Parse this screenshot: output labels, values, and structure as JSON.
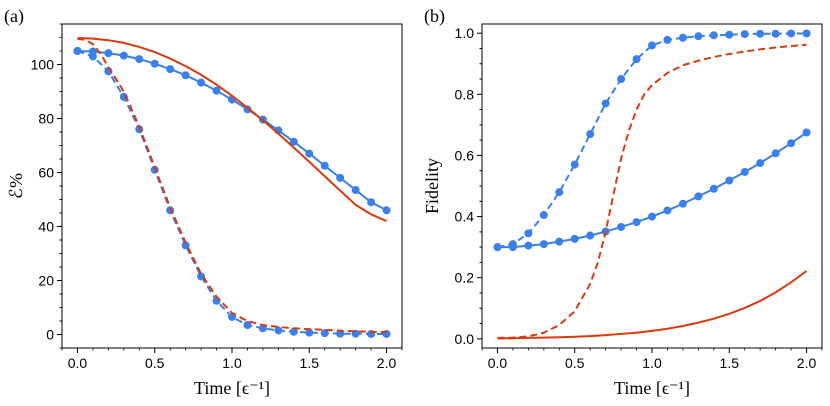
{
  "chart_data": [
    {
      "type": "line",
      "panel_label": "(a)",
      "xlabel": "Time [ϵ⁻¹]",
      "ylabel": "ℰ%",
      "xlim": [
        -0.1,
        2.1
      ],
      "ylim": [
        -5,
        115
      ],
      "xticks": [
        0.0,
        0.5,
        1.0,
        1.5,
        2.0
      ],
      "xtick_labels": [
        "0.0",
        "0.5",
        "1.0",
        "1.5",
        "2.0"
      ],
      "yticks": [
        0,
        20,
        40,
        60,
        80,
        100
      ],
      "ytick_labels": [
        "0",
        "20",
        "40",
        "60",
        "80",
        "100"
      ],
      "series": [
        {
          "name": "blue-solid-dots",
          "color": "#3a7fea",
          "style": "solid",
          "markers": true,
          "x": [
            0,
            0.1,
            0.2,
            0.3,
            0.4,
            0.5,
            0.6,
            0.7,
            0.8,
            0.9,
            1.0,
            1.1,
            1.2,
            1.3,
            1.4,
            1.5,
            1.6,
            1.7,
            1.8,
            1.9,
            2.0
          ],
          "y": [
            105,
            104.8,
            104.2,
            103.3,
            102,
            100.3,
            98.3,
            96,
            93.3,
            90.3,
            87,
            83.4,
            79.6,
            75.6,
            71.4,
            67,
            62.5,
            58,
            53.5,
            49,
            46
          ]
        },
        {
          "name": "blue-dashed-dots",
          "color": "#3a7fea",
          "style": "dashed",
          "markers": true,
          "x": [
            0,
            0.1,
            0.2,
            0.3,
            0.4,
            0.5,
            0.6,
            0.7,
            0.8,
            0.9,
            1.0,
            1.1,
            1.2,
            1.3,
            1.4,
            1.5,
            1.6,
            1.7,
            1.8,
            1.9,
            2.0
          ],
          "y": [
            105,
            103,
            97.5,
            88,
            76,
            61,
            46,
            33,
            21.5,
            12.5,
            6.5,
            3.5,
            2.3,
            1.5,
            1.0,
            0.7,
            0.5,
            0.3,
            0.3,
            0.2,
            0.2
          ]
        },
        {
          "name": "red-solid",
          "color": "#d93a10",
          "style": "solid",
          "markers": false,
          "x": [
            0,
            0.1,
            0.2,
            0.3,
            0.4,
            0.5,
            0.6,
            0.7,
            0.8,
            0.9,
            1.0,
            1.1,
            1.2,
            1.3,
            1.4,
            1.5,
            1.6,
            1.7,
            1.8,
            1.9,
            2.0
          ],
          "y": [
            109.8,
            109.6,
            109,
            108,
            106.5,
            104.6,
            102.2,
            99.4,
            96.2,
            92.5,
            88.4,
            84,
            79.3,
            74.4,
            69.2,
            64,
            58.6,
            53.3,
            48,
            44.5,
            42
          ]
        },
        {
          "name": "red-dashed",
          "color": "#d93a10",
          "style": "dashed",
          "markers": false,
          "x": [
            0.0,
            0.05,
            0.1,
            0.15,
            0.2,
            0.3,
            0.4,
            0.5,
            0.6,
            0.7,
            0.8,
            0.9,
            1.0,
            1.1,
            1.2,
            1.3,
            1.4,
            1.5,
            1.6,
            1.7,
            1.8,
            1.9,
            2.0
          ],
          "y": [
            109.5,
            109.2,
            107.5,
            104,
            99,
            90,
            77,
            62,
            47,
            34,
            22.5,
            14,
            8,
            5,
            3.5,
            2.8,
            2.3,
            2,
            1.7,
            1.4,
            1.2,
            1.0,
            0.9
          ]
        }
      ]
    },
    {
      "type": "line",
      "panel_label": "(b)",
      "xlabel": "Time [ϵ⁻¹]",
      "ylabel": "Fidelity",
      "xlim": [
        -0.1,
        2.1
      ],
      "ylim": [
        -0.03,
        1.03
      ],
      "xticks": [
        0.0,
        0.5,
        1.0,
        1.5,
        2.0
      ],
      "xtick_labels": [
        "0.0",
        "0.5",
        "1.0",
        "1.5",
        "2.0"
      ],
      "yticks": [
        0.0,
        0.2,
        0.4,
        0.6,
        0.8,
        1.0
      ],
      "ytick_labels": [
        "0.0",
        "0.2",
        "0.4",
        "0.6",
        "0.8",
        "1.0"
      ],
      "series": [
        {
          "name": "blue-dashed-dots",
          "color": "#3a7fea",
          "style": "dashed",
          "markers": true,
          "x": [
            0,
            0.1,
            0.2,
            0.3,
            0.4,
            0.5,
            0.6,
            0.7,
            0.8,
            0.9,
            1.0,
            1.1,
            1.2,
            1.3,
            1.4,
            1.5,
            1.6,
            1.7,
            1.8,
            1.9,
            2.0
          ],
          "y": [
            0.3,
            0.31,
            0.345,
            0.405,
            0.48,
            0.57,
            0.67,
            0.77,
            0.85,
            0.915,
            0.96,
            0.978,
            0.985,
            0.99,
            0.993,
            0.995,
            0.997,
            0.998,
            0.998,
            0.999,
            0.999
          ]
        },
        {
          "name": "blue-solid-dots",
          "color": "#3a7fea",
          "style": "solid",
          "markers": true,
          "x": [
            0,
            0.1,
            0.2,
            0.3,
            0.4,
            0.5,
            0.6,
            0.7,
            0.8,
            0.9,
            1.0,
            1.1,
            1.2,
            1.3,
            1.4,
            1.5,
            1.6,
            1.7,
            1.8,
            1.9,
            2.0
          ],
          "y": [
            0.3,
            0.3,
            0.305,
            0.31,
            0.318,
            0.327,
            0.338,
            0.351,
            0.366,
            0.382,
            0.4,
            0.42,
            0.442,
            0.466,
            0.491,
            0.518,
            0.546,
            0.575,
            0.607,
            0.64,
            0.675
          ]
        },
        {
          "name": "red-dashed",
          "color": "#d93a10",
          "style": "dashed",
          "markers": false,
          "x": [
            0.0,
            0.1,
            0.2,
            0.3,
            0.4,
            0.5,
            0.6,
            0.65,
            0.7,
            0.75,
            0.8,
            0.85,
            0.9,
            0.95,
            1.0,
            1.1,
            1.2,
            1.3,
            1.4,
            1.5,
            1.6,
            1.7,
            1.8,
            1.9,
            2.0
          ],
          "y": [
            0.003,
            0.004,
            0.008,
            0.02,
            0.045,
            0.09,
            0.18,
            0.25,
            0.35,
            0.47,
            0.59,
            0.68,
            0.75,
            0.8,
            0.83,
            0.87,
            0.895,
            0.91,
            0.922,
            0.932,
            0.94,
            0.947,
            0.953,
            0.958,
            0.962
          ]
        },
        {
          "name": "red-solid",
          "color": "#d93a10",
          "style": "solid",
          "markers": false,
          "x": [
            0.0,
            0.1,
            0.2,
            0.3,
            0.4,
            0.5,
            0.6,
            0.7,
            0.8,
            0.9,
            1.0,
            1.1,
            1.2,
            1.3,
            1.4,
            1.5,
            1.6,
            1.7,
            1.8,
            1.9,
            2.0
          ],
          "y": [
            0.001,
            0.002,
            0.003,
            0.004,
            0.005,
            0.007,
            0.009,
            0.012,
            0.016,
            0.02,
            0.026,
            0.033,
            0.042,
            0.053,
            0.066,
            0.082,
            0.101,
            0.124,
            0.152,
            0.185,
            0.222
          ]
        }
      ]
    }
  ]
}
